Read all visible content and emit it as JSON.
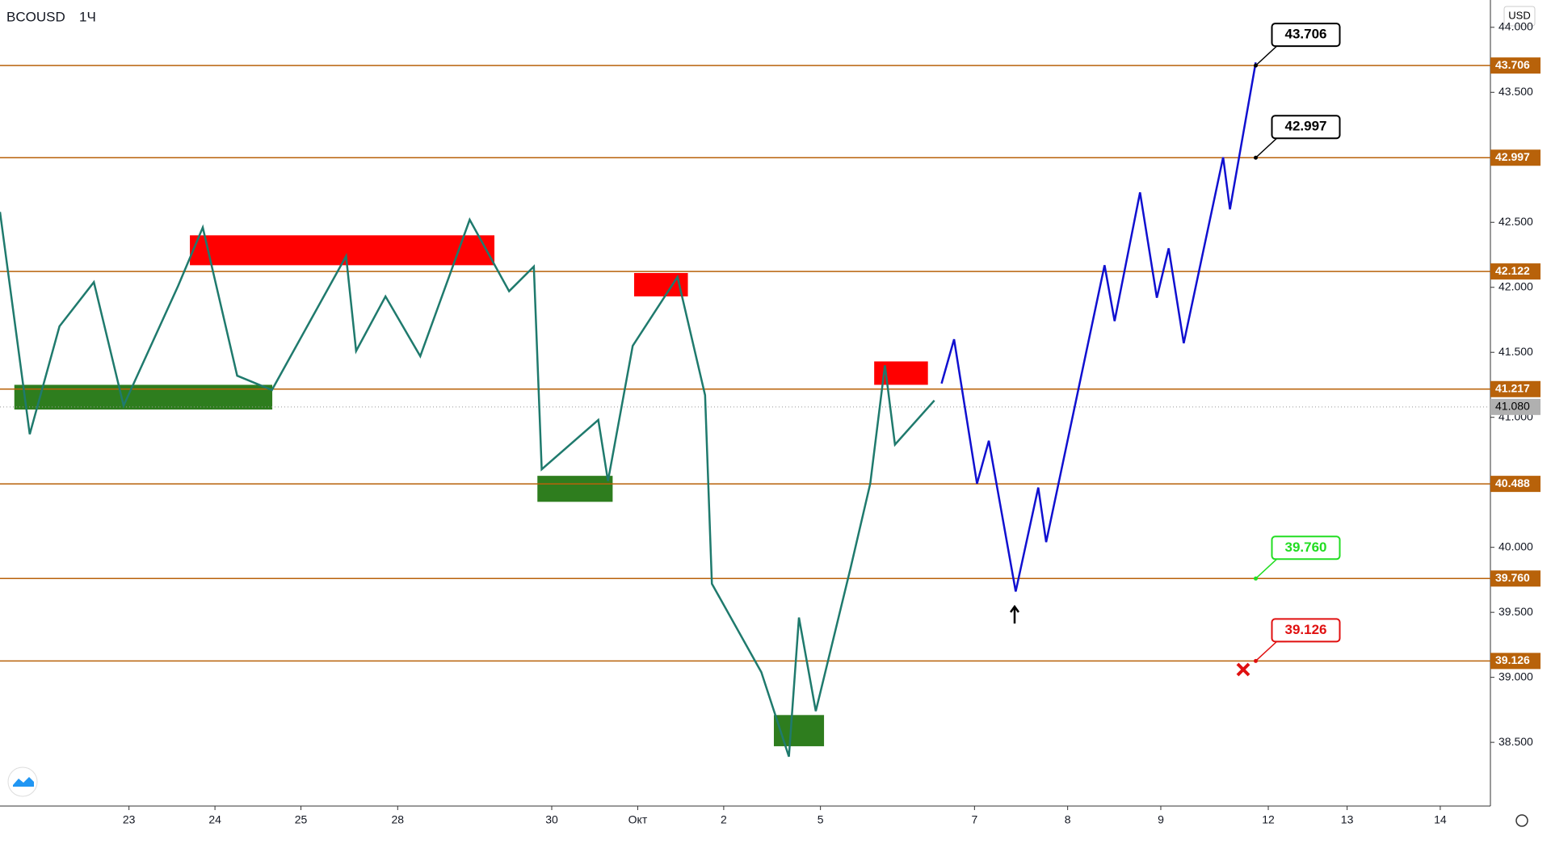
{
  "chart_data": {
    "type": "line",
    "title": "BCOUSD",
    "interval": "1Ч",
    "currency": "USD",
    "xlim": [
      0,
      416
    ],
    "ylim": [
      38.01,
      44.21
    ],
    "xticks": [
      {
        "value": 36,
        "label": "23"
      },
      {
        "value": 60,
        "label": "24"
      },
      {
        "value": 84,
        "label": "25"
      },
      {
        "value": 111,
        "label": "28"
      },
      {
        "value": 154,
        "label": "30"
      },
      {
        "value": 178,
        "label": "Окт"
      },
      {
        "value": 202,
        "label": "2"
      },
      {
        "value": 229,
        "label": "5"
      },
      {
        "value": 272,
        "label": "7"
      },
      {
        "value": 298,
        "label": "8"
      },
      {
        "value": 324,
        "label": "9"
      },
      {
        "value": 354,
        "label": "12"
      },
      {
        "value": 376,
        "label": "13"
      },
      {
        "value": 402,
        "label": "14"
      }
    ],
    "yticks": [
      {
        "value": 38.5,
        "label": "38.500"
      },
      {
        "value": 39,
        "label": "39.000"
      },
      {
        "value": 39.5,
        "label": "39.500"
      },
      {
        "value": 40,
        "label": "40.000"
      },
      {
        "value": 40.5,
        "label": "40.500"
      },
      {
        "value": 41,
        "label": "41.000"
      },
      {
        "value": 41.5,
        "label": "41.500"
      },
      {
        "value": 42,
        "label": "42.000"
      },
      {
        "value": 42.5,
        "label": "42.500"
      },
      {
        "value": 43,
        "label": "43.000"
      },
      {
        "value": 43.5,
        "label": "43.500"
      },
      {
        "value": 44,
        "label": "44.000"
      }
    ],
    "series": [
      {
        "color": "#1f7a6d",
        "x": [
          0,
          8.3,
          16.6,
          26.2,
          34.5,
          49.7,
          56.6,
          66.2,
          75.9,
          96.6,
          99.4,
          107.6,
          117.3,
          131.1,
          142.1,
          149.0,
          151.2,
          167.0,
          169.7,
          176.6,
          189.1,
          196.8,
          198.7,
          212.5,
          220.2,
          223.0,
          227.7,
          237.4,
          242.9,
          247.0,
          249.8,
          260.8
        ],
        "values": [
          42.58,
          40.87,
          41.7,
          42.04,
          41.09,
          42.01,
          42.46,
          41.32,
          41.21,
          42.24,
          41.51,
          41.93,
          41.47,
          42.52,
          41.97,
          42.16,
          40.6,
          40.98,
          40.51,
          41.55,
          42.08,
          41.17,
          39.72,
          39.04,
          38.39,
          39.46,
          38.74,
          39.84,
          40.49,
          41.4,
          40.79,
          41.13
        ]
      },
      {
        "color": "#1010d0",
        "x": [
          262.8,
          266.3,
          272.7,
          276.0,
          283.5,
          289.8,
          292.0,
          308.3,
          311.1,
          318.2,
          322.9,
          326.2,
          330.4,
          341.4,
          343.3,
          350.5
        ],
        "values": [
          41.26,
          41.6,
          40.49,
          40.82,
          39.66,
          40.46,
          40.04,
          42.17,
          41.74,
          42.73,
          41.92,
          42.3,
          41.57,
          43.0,
          42.6,
          43.73
        ]
      }
    ],
    "levels_color": "#b8620a",
    "levels": [
      {
        "value": 43.706,
        "label": "43.706"
      },
      {
        "value": 42.997,
        "label": "42.997"
      },
      {
        "value": 42.122,
        "label": "42.122"
      },
      {
        "value": 41.217,
        "label": "41.217"
      },
      {
        "value": 40.488,
        "label": "40.488"
      },
      {
        "value": 39.76,
        "label": "39.760"
      },
      {
        "value": 39.126,
        "label": "39.126"
      }
    ],
    "last_price": {
      "value": 41.08,
      "label": "41.080"
    },
    "zones": [
      {
        "color": "#ff0000",
        "x": [
          53,
          138
        ],
        "y": [
          42.17,
          42.4
        ]
      },
      {
        "color": "#ff0000",
        "x": [
          177,
          192
        ],
        "y": [
          41.93,
          42.11
        ]
      },
      {
        "color": "#ff0000",
        "x": [
          244,
          259
        ],
        "y": [
          41.25,
          41.43
        ]
      },
      {
        "color": "#2e7d1e",
        "x": [
          4,
          76
        ],
        "y": [
          41.06,
          41.25
        ]
      },
      {
        "color": "#2e7d1e",
        "x": [
          150,
          171
        ],
        "y": [
          40.35,
          40.55
        ]
      },
      {
        "color": "#2e7d1e",
        "x": [
          216,
          230
        ],
        "y": [
          38.47,
          38.71
        ]
      }
    ],
    "callouts": [
      {
        "x": 350.5,
        "value": 43.706,
        "label": "43.706",
        "color": "#000000"
      },
      {
        "x": 350.5,
        "value": 42.997,
        "label": "42.997",
        "color": "#000000"
      },
      {
        "x": 350.5,
        "value": 39.76,
        "label": "39.760",
        "color": "#22dd22"
      },
      {
        "x": 350.5,
        "value": 39.126,
        "label": "39.126",
        "color": "#e01010"
      }
    ]
  }
}
